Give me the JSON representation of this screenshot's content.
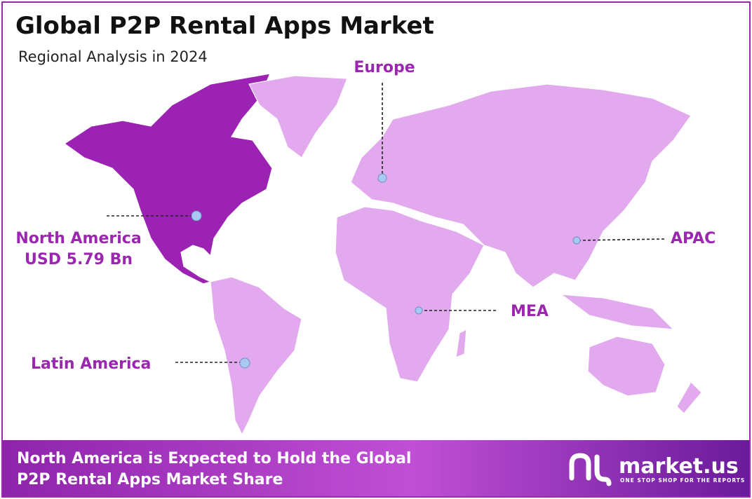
{
  "header": {
    "title": "Global P2P Rental Apps Market",
    "subtitle": "Regional Analysis in 2024"
  },
  "regions": [
    {
      "label": "Europe"
    },
    {
      "label": "North America",
      "value": "USD 5.79 Bn"
    },
    {
      "label": "APAC"
    },
    {
      "label": "MEA"
    },
    {
      "label": "Latin America"
    }
  ],
  "footer": {
    "lines": [
      "North America is Expected to Hold the Global",
      "P2P Rental Apps Market Share"
    ],
    "logo": {
      "name": "market.us",
      "tagline": "ONE STOP SHOP FOR THE REPORTS"
    }
  }
}
